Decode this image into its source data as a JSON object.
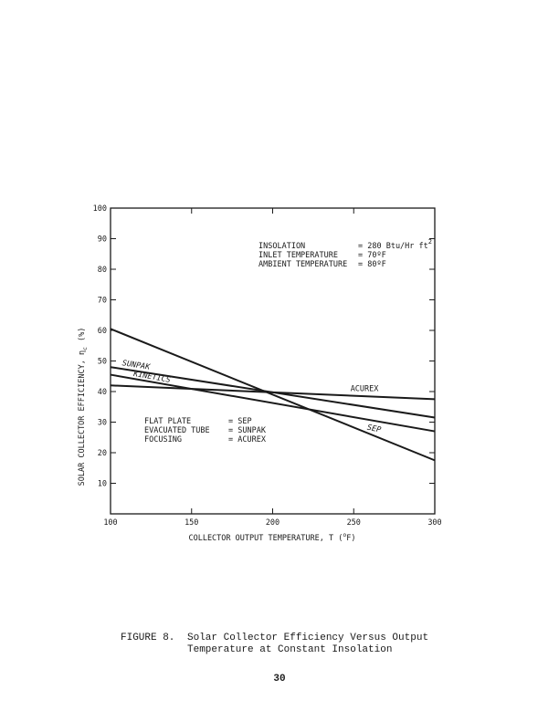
{
  "chart_data": {
    "type": "line",
    "xlabel": "COLLECTOR OUTPUT TEMPERATURE, T (",
    "xlabel_unit": "o",
    "xlabel_end": "F)",
    "ylabel": "SOLAR COLLECTOR EFFICIENCY, η",
    "ylabel_sub": "c",
    "ylabel_end": "(%)",
    "xlim": [
      100,
      300
    ],
    "ylim": [
      0,
      100
    ],
    "x_ticks": [
      "100",
      "150",
      "200",
      "250",
      "300"
    ],
    "y_ticks": [
      "10",
      "20",
      "30",
      "40",
      "50",
      "60",
      "70",
      "80",
      "90",
      "100"
    ],
    "series": [
      {
        "name": "SEP",
        "x": [
          100,
          300
        ],
        "y": [
          60.5,
          17.5
        ]
      },
      {
        "name": "SUNPAK",
        "x": [
          100,
          300
        ],
        "y": [
          48,
          31.5
        ]
      },
      {
        "name": "KINETICS",
        "x": [
          100,
          300
        ],
        "y": [
          45.5,
          27
        ]
      },
      {
        "name": "ACUREX",
        "x": [
          100,
          300
        ],
        "y": [
          42,
          37.5
        ]
      }
    ],
    "conditions": [
      {
        "label": "INSOLATION",
        "value": "= 280 Btu/Hr ft",
        "sup": "2"
      },
      {
        "label": "INLET TEMPERATURE",
        "value": "= 70ºF",
        "sup": ""
      },
      {
        "label": "AMBIENT TEMPERATURE",
        "value": "= 80ºF",
        "sup": ""
      }
    ],
    "legend": [
      {
        "label": "FLAT PLATE",
        "value": "= SEP"
      },
      {
        "label": "EVACUATED TUBE",
        "value": "= SUNPAK"
      },
      {
        "label": "FOCUSING",
        "value": "= ACUREX"
      }
    ],
    "grid": false
  },
  "caption": {
    "figure": "FIGURE 8.",
    "line1": "Solar Collector Efficiency Versus Output",
    "line2": "Temperature at Constant Insolation"
  },
  "page_number": "30"
}
